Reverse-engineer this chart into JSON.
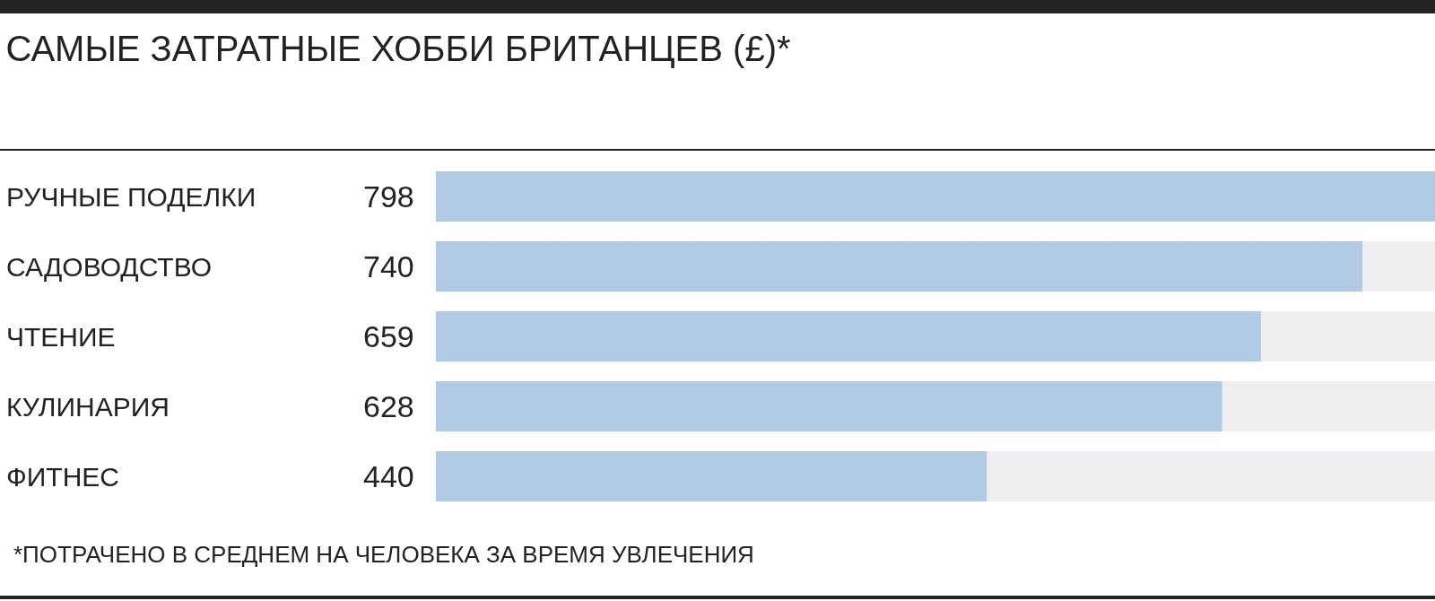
{
  "chart_data": {
    "type": "bar",
    "orientation": "horizontal",
    "title": "САМЫЕ ЗАТРАТНЫЕ ХОББИ БРИТАНЦЕВ (£)*",
    "categories": [
      "РУЧНЫЕ ПОДЕЛКИ",
      "САДОВОДСТВО",
      "ЧТЕНИЕ",
      "КУЛИНАРИЯ",
      "ФИТНЕС"
    ],
    "values": [
      798,
      740,
      659,
      628,
      440
    ],
    "color": "#b0cbe3",
    "data_labels": true,
    "legend": false,
    "annotations": [
      "*ПОТРАЧЕНО В СРЕДНЕМ НА ЧЕЛОВЕКА ЗА ВРЕМЯ УВЛЕЧЕНИЯ"
    ]
  }
}
